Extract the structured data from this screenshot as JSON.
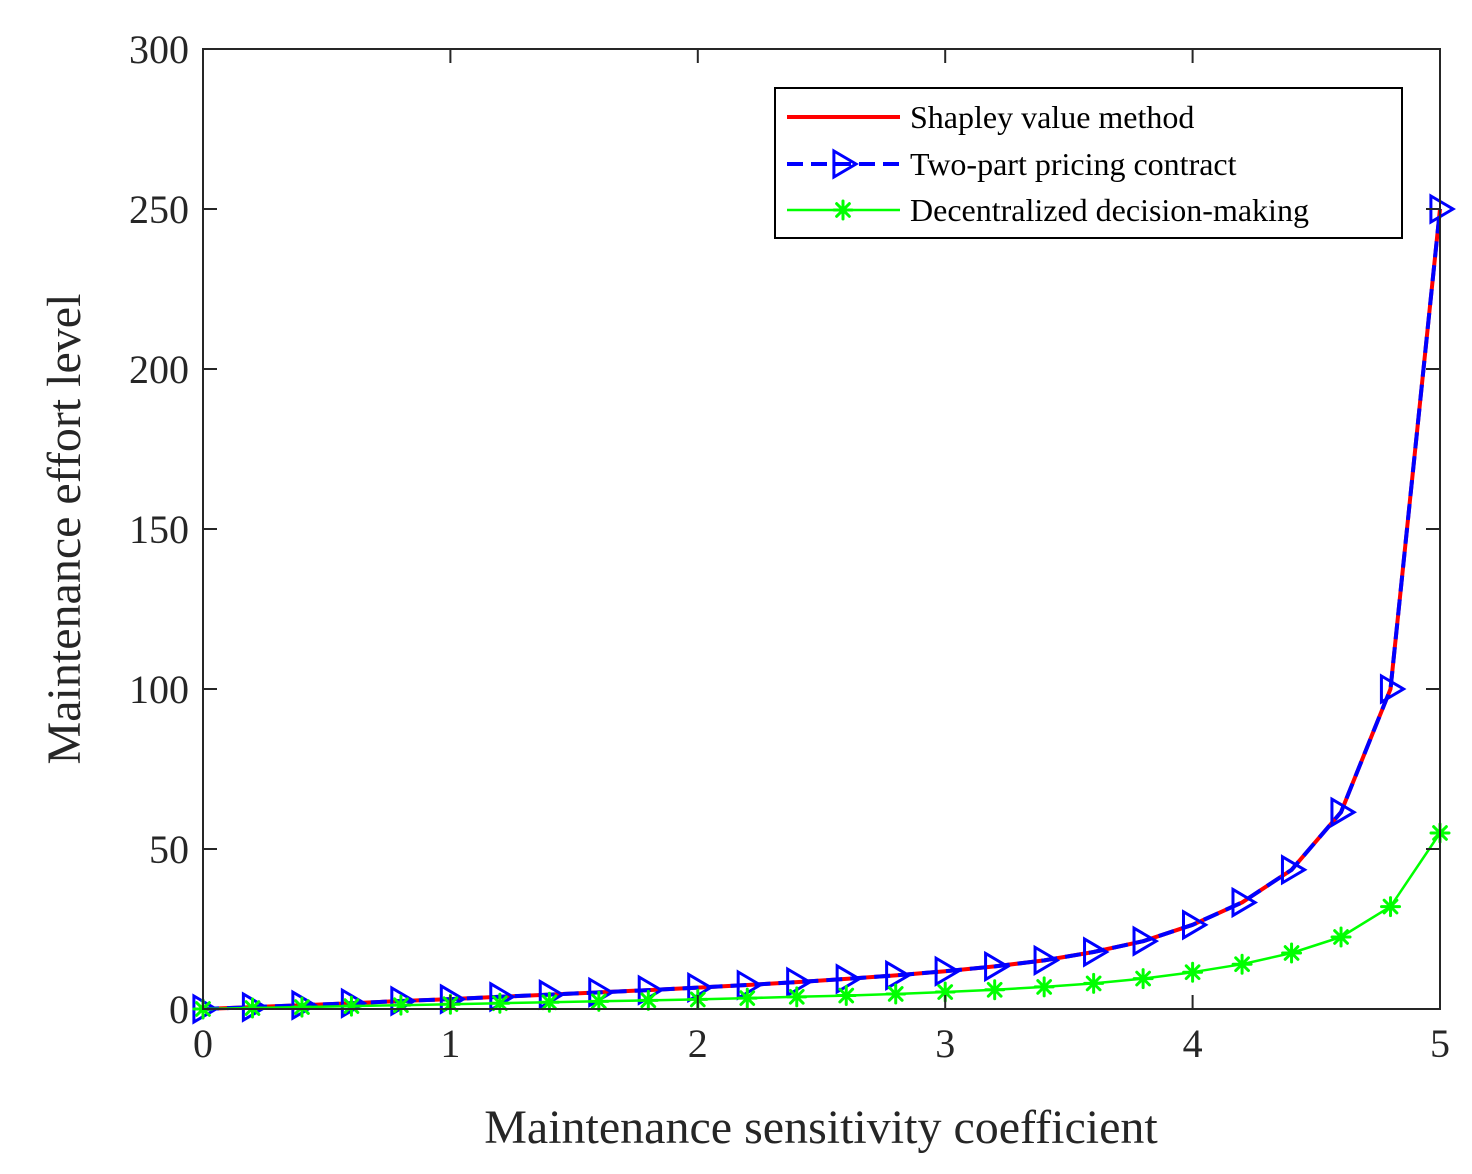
{
  "chart_data": {
    "type": "line",
    "xlabel": "Maintenance sensitivity coefficient",
    "ylabel": "Maintenance effort level",
    "xlim": [
      0,
      5
    ],
    "ylim": [
      0,
      300
    ],
    "xticks": [
      0,
      1,
      2,
      3,
      4,
      5
    ],
    "xtick_labels": [
      "0",
      "1",
      "2",
      "3",
      "4",
      "5"
    ],
    "yticks": [
      0,
      50,
      100,
      150,
      200,
      250,
      300
    ],
    "ytick_labels": [
      "0",
      "50",
      "100",
      "150",
      "200",
      "250",
      "300"
    ],
    "grid": false,
    "legend_position": "top-right",
    "x": [
      0,
      0.2,
      0.4,
      0.6,
      0.8,
      1.0,
      1.2,
      1.4,
      1.6,
      1.8,
      2.0,
      2.2,
      2.4,
      2.6,
      2.8,
      3.0,
      3.2,
      3.4,
      3.6,
      3.8,
      4.0,
      4.2,
      4.4,
      4.6,
      4.8,
      5.0
    ],
    "series": [
      {
        "name": "Shapley value method",
        "color": "#ff0000",
        "style": "solid",
        "marker": "none",
        "values": [
          0,
          0.6,
          1.2,
          1.8,
          2.5,
          3.1,
          3.8,
          4.5,
          5.2,
          5.9,
          6.7,
          7.5,
          8.4,
          9.4,
          10.5,
          11.8,
          13.3,
          15.2,
          17.8,
          21.2,
          26.3,
          33.3,
          43.5,
          61.5,
          100,
          250
        ]
      },
      {
        "name": "Two-part pricing contract",
        "color": "#0000ff",
        "style": "dashed",
        "marker": "triangle-right",
        "values": [
          0,
          0.6,
          1.2,
          1.8,
          2.5,
          3.1,
          3.8,
          4.5,
          5.2,
          5.9,
          6.7,
          7.5,
          8.4,
          9.4,
          10.5,
          11.8,
          13.3,
          15.2,
          17.8,
          21.2,
          26.3,
          33.3,
          43.5,
          61.5,
          100,
          250
        ]
      },
      {
        "name": "Decentralized decision-making",
        "color": "#00ff00",
        "style": "solid",
        "marker": "asterisk",
        "values": [
          0,
          0.3,
          0.6,
          0.9,
          1.2,
          1.5,
          1.8,
          2.1,
          2.4,
          2.7,
          3.0,
          3.4,
          3.8,
          4.2,
          4.7,
          5.3,
          6.0,
          6.9,
          8.0,
          9.5,
          11.5,
          14.0,
          17.5,
          22.5,
          32.0,
          55.0
        ]
      }
    ]
  }
}
